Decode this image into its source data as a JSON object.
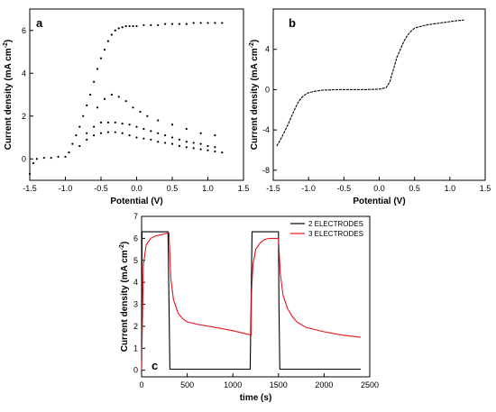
{
  "colors": {
    "black": "#000000",
    "red": "#e8141b"
  },
  "chart_data": [
    {
      "panel_label": "a",
      "type": "scatter",
      "xlabel": "Potential (V)",
      "ylabel_main": "Current density (mA cm",
      "ylabel_sup": "-2",
      "ylabel_close": ")",
      "xlim": [
        -1.5,
        1.5
      ],
      "ylim": [
        -1,
        7
      ],
      "xticks": [
        -1.5,
        -1.0,
        -0.5,
        0.0,
        0.5,
        1.0,
        1.5
      ],
      "xtick_labels": [
        "-1.5",
        "-1.0",
        "-0.5",
        "0.0",
        "0.5",
        "1.0",
        "1.5"
      ],
      "yticks": [
        0,
        2,
        4,
        6
      ],
      "ytick_labels": [
        "0",
        "2",
        "4",
        "6"
      ],
      "grid": false,
      "series": [
        {
          "values_description": "",
          "color": "#000000",
          "x": [
            -1.5,
            -1.45,
            -1.4,
            -1.3,
            -1.2,
            -1.1,
            -1.0,
            -0.95,
            -0.9,
            -0.85,
            -0.8,
            -0.75,
            -0.7,
            -0.65,
            -0.6,
            -0.55,
            -0.5,
            -0.45,
            -0.4,
            -0.35,
            -0.3,
            -0.25,
            -0.2,
            -0.15,
            -0.1,
            -0.05,
            0.0,
            0.1,
            0.2,
            0.3,
            0.4,
            0.5,
            0.6,
            0.7,
            0.8,
            0.9,
            1.0,
            1.1,
            1.2
          ],
          "y": [
            -0.7,
            -0.2,
            0.0,
            0.05,
            0.05,
            0.1,
            0.1,
            0.3,
            0.7,
            1.1,
            1.5,
            2.0,
            2.5,
            3.0,
            3.6,
            4.2,
            4.7,
            5.1,
            5.5,
            5.8,
            6.0,
            6.1,
            6.15,
            6.2,
            6.2,
            6.2,
            6.2,
            6.25,
            6.25,
            6.25,
            6.3,
            6.3,
            6.3,
            6.3,
            6.35,
            6.35,
            6.35,
            6.35,
            6.35
          ]
        },
        {
          "values_description": "",
          "color": "#000000",
          "x": [
            -0.8,
            -0.7,
            -0.6,
            -0.5,
            -0.4,
            -0.3,
            -0.2,
            -0.1,
            0.0,
            0.1,
            0.2,
            0.3,
            0.4,
            0.5,
            0.6,
            0.7,
            0.8,
            0.9,
            1.0,
            1.1,
            1.2
          ],
          "y": [
            0.6,
            0.9,
            1.1,
            1.2,
            1.25,
            1.25,
            1.2,
            1.1,
            1.0,
            0.95,
            0.9,
            0.8,
            0.75,
            0.7,
            0.6,
            0.55,
            0.5,
            0.45,
            0.4,
            0.35,
            0.3
          ]
        },
        {
          "values_description": "",
          "color": "#000000",
          "x": [
            -0.7,
            -0.6,
            -0.5,
            -0.4,
            -0.3,
            -0.2,
            -0.1,
            0.0,
            0.1,
            0.2,
            0.3,
            0.4,
            0.5,
            0.6,
            0.7,
            0.8,
            0.9,
            1.0,
            1.1
          ],
          "y": [
            1.2,
            1.5,
            1.7,
            1.7,
            1.7,
            1.65,
            1.6,
            1.5,
            1.4,
            1.3,
            1.2,
            1.1,
            1.0,
            0.9,
            0.8,
            0.75,
            0.7,
            0.6,
            0.55
          ]
        },
        {
          "values_description": "",
          "color": "#000000",
          "x": [
            -0.55,
            -0.45,
            -0.35,
            -0.25,
            -0.15,
            -0.05,
            0.05,
            0.15,
            0.3,
            0.5,
            0.7,
            0.9,
            1.1
          ],
          "y": [
            2.4,
            2.8,
            3.0,
            2.9,
            2.7,
            2.4,
            2.2,
            2.0,
            1.8,
            1.6,
            1.4,
            1.2,
            1.1
          ]
        }
      ]
    },
    {
      "panel_label": "b",
      "type": "line",
      "xlabel": "Potential (V)",
      "ylabel_main": "Current density (mA cm",
      "ylabel_sup": "-2",
      "ylabel_close": ")",
      "xlim": [
        -1.5,
        1.5
      ],
      "ylim": [
        -9,
        8
      ],
      "xticks": [
        -1.5,
        -1.0,
        -0.5,
        0.0,
        0.5,
        1.0,
        1.5
      ],
      "xtick_labels": [
        "-1.5",
        "-1.0",
        "-0.5",
        "0.0",
        "0.5",
        "1.0",
        "1.5"
      ],
      "yticks": [
        -8,
        -4,
        0,
        4
      ],
      "ytick_labels": [
        "-8",
        "-4",
        "0",
        "4"
      ],
      "grid": false,
      "series": [
        {
          "color": "#000000",
          "x": [
            -1.45,
            -1.4,
            -1.35,
            -1.3,
            -1.25,
            -1.2,
            -1.15,
            -1.1,
            -1.05,
            -1.0,
            -0.9,
            -0.8,
            -0.6,
            -0.4,
            -0.2,
            0.0,
            0.1,
            0.15,
            0.2,
            0.25,
            0.3,
            0.35,
            0.4,
            0.45,
            0.5,
            0.6,
            0.7,
            0.8,
            0.9,
            1.0,
            1.1,
            1.2
          ],
          "y": [
            -5.6,
            -5.0,
            -4.3,
            -3.6,
            -2.8,
            -2.0,
            -1.3,
            -0.8,
            -0.5,
            -0.3,
            -0.15,
            -0.05,
            0.0,
            0.0,
            0.0,
            0.05,
            0.2,
            0.8,
            2.0,
            3.2,
            4.0,
            4.8,
            5.4,
            5.8,
            6.1,
            6.3,
            6.45,
            6.55,
            6.65,
            6.75,
            6.85,
            6.9
          ]
        }
      ]
    },
    {
      "panel_label": "c",
      "type": "line",
      "xlabel": "time (s)",
      "ylabel_main": "Current density (mA cm",
      "ylabel_sup": "-2",
      "ylabel_close": ")",
      "xlim": [
        0,
        2500
      ],
      "ylim": [
        -0.3,
        7
      ],
      "xticks": [
        0,
        500,
        1000,
        1500,
        2000,
        2500
      ],
      "xtick_labels": [
        "0",
        "500",
        "1000",
        "1500",
        "2000",
        "2500"
      ],
      "yticks": [
        0,
        1,
        2,
        3,
        4,
        5,
        6,
        7
      ],
      "ytick_labels": [
        "0",
        "1",
        "2",
        "3",
        "4",
        "5",
        "6",
        "7"
      ],
      "grid": false,
      "legend_position": "top-right",
      "series": [
        {
          "name": "2 ELECTRODES",
          "color": "#000000",
          "x": [
            0,
            5,
            20,
            290,
            300,
            310,
            1190,
            1200,
            1210,
            1500,
            1505,
            1515,
            2400
          ],
          "y": [
            0.0,
            6.3,
            6.3,
            6.3,
            3.0,
            0.05,
            0.05,
            3.0,
            6.3,
            6.3,
            3.0,
            0.05,
            0.05
          ]
        },
        {
          "name": "3 ELECTRODES",
          "color": "#e8141b",
          "x": [
            0,
            20,
            50,
            100,
            150,
            200,
            250,
            300,
            320,
            350,
            400,
            450,
            500,
            600,
            800,
            1000,
            1200,
            1205,
            1220,
            1250,
            1300,
            1350,
            1400,
            1450,
            1500,
            1520,
            1550,
            1600,
            1650,
            1700,
            1800,
            2000,
            2200,
            2400
          ],
          "y": [
            0.0,
            4.8,
            5.7,
            6.0,
            6.1,
            6.15,
            6.2,
            6.25,
            4.2,
            3.2,
            2.6,
            2.35,
            2.2,
            2.1,
            1.95,
            1.8,
            1.6,
            3.5,
            4.8,
            5.5,
            5.8,
            5.95,
            6.0,
            6.0,
            6.0,
            4.4,
            3.4,
            2.8,
            2.45,
            2.2,
            1.95,
            1.75,
            1.6,
            1.5
          ]
        }
      ]
    }
  ]
}
